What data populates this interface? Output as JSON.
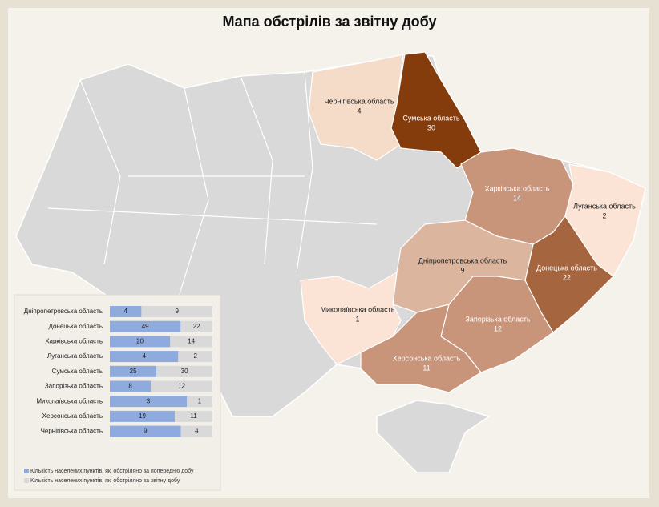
{
  "title": "Мапа обстрілів за звітну добу",
  "map": {
    "regions": [
      {
        "name": "Чернігівська область",
        "value": 4,
        "color": "#f5dcc8"
      },
      {
        "name": "Сумська область",
        "value": 30,
        "color": "#843c0c"
      },
      {
        "name": "Харківська область",
        "value": 14,
        "color": "#c9957a"
      },
      {
        "name": "Луганська область",
        "value": 2,
        "color": "#fbe4d5"
      },
      {
        "name": "Донецька область",
        "value": 22,
        "color": "#a5653e"
      },
      {
        "name": "Дніпропетровська область",
        "value": 9,
        "color": "#dbb59e"
      },
      {
        "name": "Запорізька область",
        "value": 12,
        "color": "#c9957a"
      },
      {
        "name": "Херсонська область",
        "value": 11,
        "color": "#c9957a"
      },
      {
        "name": "Миколаївська область",
        "value": 1,
        "color": "#fbe4d5"
      }
    ]
  },
  "chart_data": {
    "type": "bar",
    "orientation": "horizontal",
    "stacking": "percent",
    "categories": [
      "Дніпропетровська область",
      "Донецька область",
      "Харківська область",
      "Луганська область",
      "Сумська область",
      "Запорізька область",
      "Миколаївська область",
      "Херсонська область",
      "Чернігівська область"
    ],
    "series": [
      {
        "name": "Кількість населених пунктів, які обстріляно за попередню добу",
        "color": "#8faadc",
        "values": [
          4,
          49,
          20,
          4,
          25,
          8,
          3,
          19,
          9
        ]
      },
      {
        "name": "Кількість населених пунктів, які обстріляно за звітну добу",
        "color": "#d9d9d9",
        "values": [
          9,
          22,
          14,
          2,
          30,
          12,
          1,
          11,
          4
        ]
      }
    ]
  }
}
